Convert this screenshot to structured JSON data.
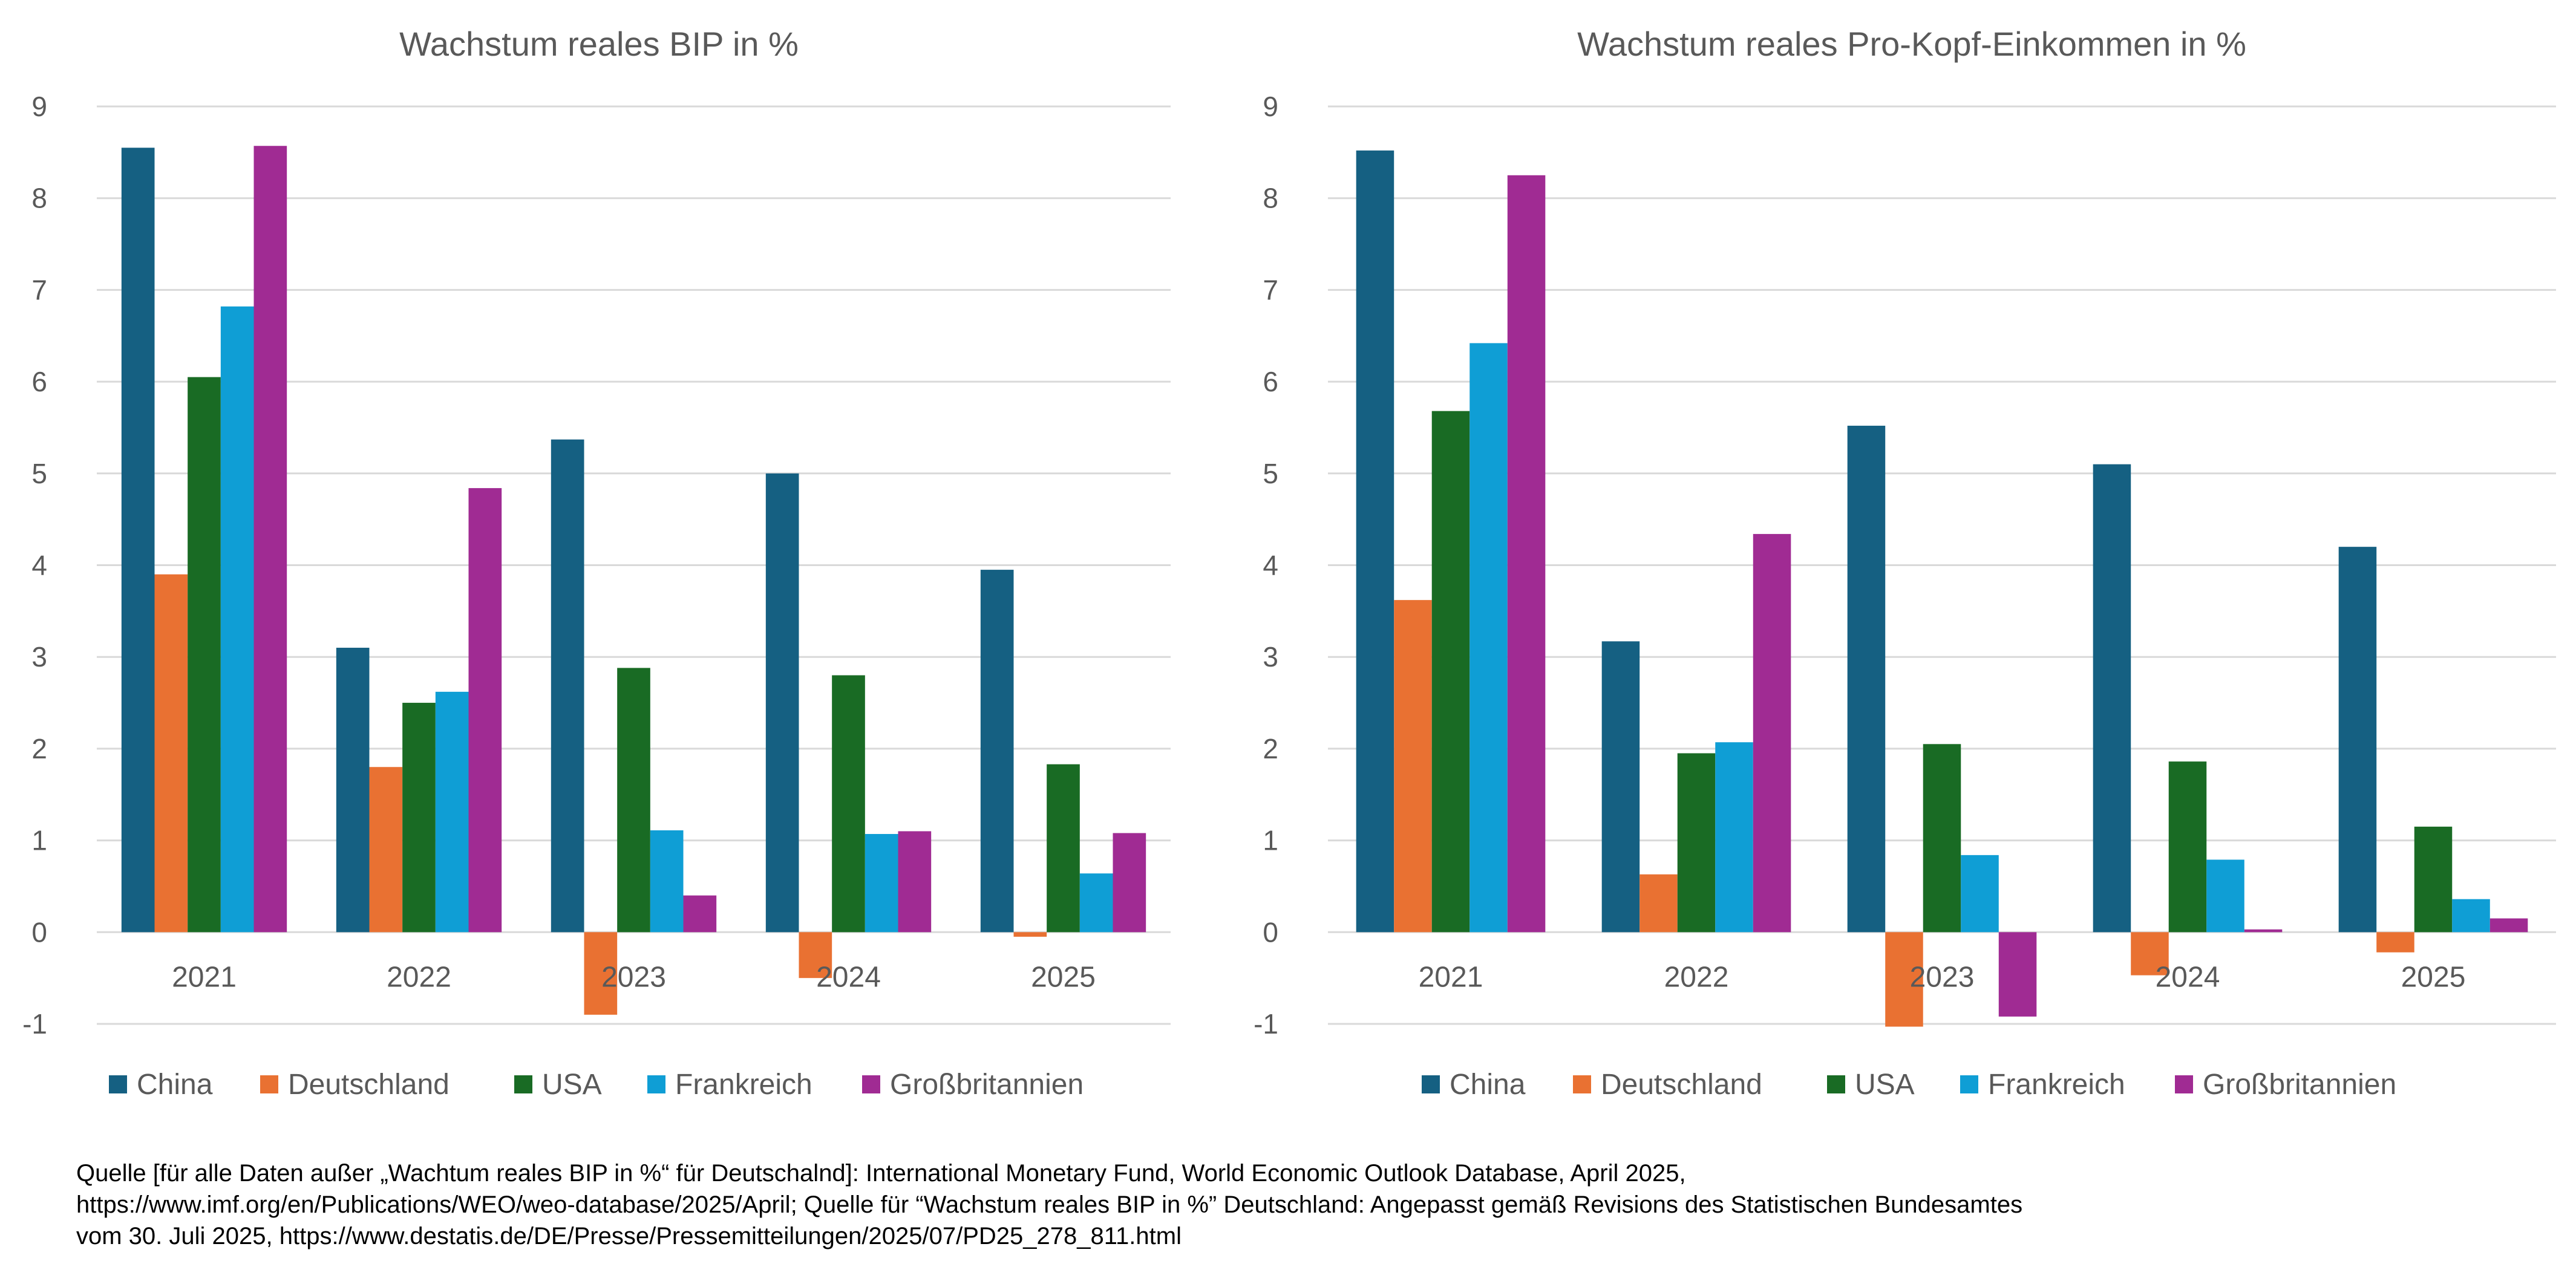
{
  "chart_data": [
    {
      "type": "bar",
      "title": "Wachstum reales BIP in %",
      "categories": [
        "2021",
        "2022",
        "2023",
        "2024",
        "2025"
      ],
      "ylim": [
        -1,
        9
      ],
      "yticks": [
        "9",
        "8",
        "7",
        "6",
        "5",
        "4",
        "3",
        "2",
        "1",
        "0",
        "-1"
      ],
      "grid": true,
      "legend_position": "bottom",
      "series": [
        {
          "name": "China",
          "color": "#156082",
          "values": [
            8.55,
            3.1,
            5.37,
            5.0,
            3.95
          ]
        },
        {
          "name": "Deutschland",
          "color": "#E97132",
          "values": [
            3.9,
            1.8,
            -0.9,
            -0.5,
            -0.05
          ]
        },
        {
          "name": "USA",
          "color": "#196B24",
          "values": [
            6.05,
            2.5,
            2.88,
            2.8,
            1.83
          ]
        },
        {
          "name": "Frankreich",
          "color": "#0F9ED5",
          "values": [
            6.82,
            2.62,
            1.11,
            1.07,
            0.64
          ]
        },
        {
          "name": "Großbritannien",
          "color": "#A02B93",
          "values": [
            8.57,
            4.84,
            0.4,
            1.1,
            1.08
          ]
        }
      ]
    },
    {
      "type": "bar",
      "title": "Wachstum reales Pro-Kopf-Einkommen in %",
      "categories": [
        "2021",
        "2022",
        "2023",
        "2024",
        "2025"
      ],
      "ylim": [
        -1,
        9
      ],
      "yticks": [
        "9",
        "8",
        "7",
        "6",
        "5",
        "4",
        "3",
        "2",
        "1",
        "0",
        "-1"
      ],
      "grid": true,
      "legend_position": "bottom",
      "series": [
        {
          "name": "China",
          "color": "#156082",
          "values": [
            8.52,
            3.17,
            5.52,
            5.1,
            4.2
          ]
        },
        {
          "name": "Deutschland",
          "color": "#E97132",
          "values": [
            3.62,
            0.63,
            -1.03,
            -0.47,
            -0.22
          ]
        },
        {
          "name": "USA",
          "color": "#196B24",
          "values": [
            5.68,
            1.95,
            2.05,
            1.86,
            1.15
          ]
        },
        {
          "name": "Frankreich",
          "color": "#0F9ED5",
          "values": [
            6.42,
            2.07,
            0.84,
            0.79,
            0.36
          ]
        },
        {
          "name": "Großbritannien",
          "color": "#A02B93",
          "values": [
            8.25,
            4.34,
            -0.92,
            0.03,
            0.15
          ]
        }
      ]
    }
  ],
  "source": {
    "line1": "Quelle [für alle Daten außer „Wachtum reales BIP in %“ für Deutschalnd]: International Monetary Fund, World Economic Outlook Database, April 2025,",
    "line2": "https://www.imf.org/en/Publications/WEO/weo-database/2025/April; Quelle für “Wachstum reales BIP in %” Deutschland: Angepasst gemäß Revisions des Statistischen Bundesamtes",
    "line3": "vom 30. Juli 2025, https://www.destatis.de/DE/Presse/Pressemitteilungen/2025/07/PD25_278_811.html"
  }
}
